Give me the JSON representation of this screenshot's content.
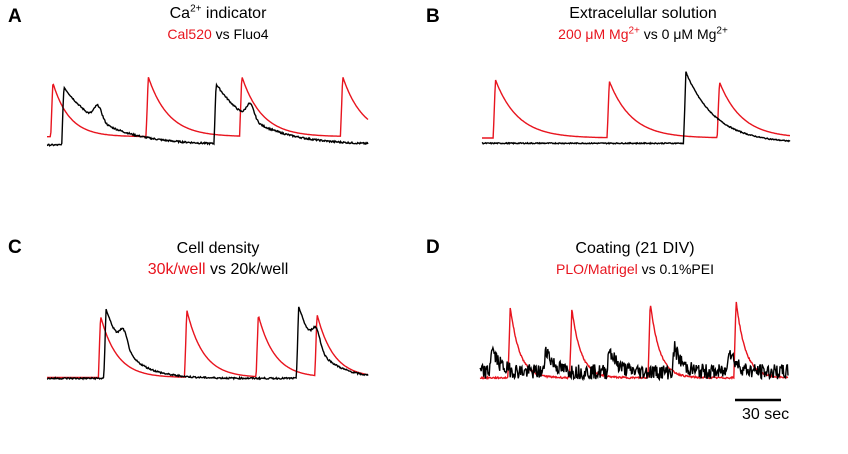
{
  "colors": {
    "red": "#e8141e",
    "black": "#000000"
  },
  "panels": {
    "A": {
      "letter": "A",
      "title_pre": "Ca",
      "title_sup": "2+",
      "title_post": " indicator",
      "sub_red": "Cal520",
      "sub_black": " vs Fluo4"
    },
    "B": {
      "letter": "B",
      "title": "Extracelullar solution",
      "sub_red": "200 μM Mg",
      "sub_red_sup": "2+",
      "sub_black": " vs 0 μM Mg",
      "sub_black_sup": "2+"
    },
    "C": {
      "letter": "C",
      "title": "Cell density",
      "sub_red": "30k/well",
      "sub_black": " vs 20k/well"
    },
    "D": {
      "letter": "D",
      "title": "Coating (21 DIV)",
      "sub_red": "PLO/Matrigel",
      "sub_black": " vs 0.1%PEI"
    }
  },
  "scale_bar": {
    "label": "30 sec"
  },
  "chart_data": [
    {
      "type": "line",
      "panel": "A",
      "x_unit": "sec",
      "series": [
        {
          "color": "red",
          "baseline": 0.1,
          "noise": 0.0,
          "peaks": [
            {
              "t": 2,
              "amp": 0.65,
              "decay": 9
            },
            {
              "t": 54,
              "amp": 0.72,
              "decay": 11
            },
            {
              "t": 105,
              "amp": 0.72,
              "decay": 11
            },
            {
              "t": 160,
              "amp": 0.72,
              "decay": 11
            }
          ]
        },
        {
          "color": "black",
          "baseline": 0.0,
          "noise": 0.01,
          "peaks": [
            {
              "t": 8,
              "amp": 0.7,
              "decay": 22,
              "shoulder": 0.5
            },
            {
              "t": 91,
              "amp": 0.72,
              "decay": 22,
              "shoulder": 0.5
            }
          ]
        }
      ]
    },
    {
      "type": "line",
      "panel": "B",
      "x_unit": "sec",
      "series": [
        {
          "color": "red",
          "baseline": 0.08,
          "noise": 0.0,
          "peaks": [
            {
              "t": 6,
              "amp": 0.67,
              "decay": 12
            },
            {
              "t": 67,
              "amp": 0.65,
              "decay": 12
            },
            {
              "t": 126,
              "amp": 0.64,
              "decay": 12
            }
          ]
        },
        {
          "color": "black",
          "baseline": 0.02,
          "noise": 0.006,
          "peaks": [
            {
              "t": 108,
              "amp": 0.82,
              "decay": 16
            }
          ]
        }
      ]
    },
    {
      "type": "line",
      "panel": "C",
      "x_unit": "sec",
      "series": [
        {
          "color": "red",
          "baseline": 0.03,
          "noise": 0.0,
          "peaks": [
            {
              "t": 28,
              "amp": 0.75,
              "decay": 9
            },
            {
              "t": 75,
              "amp": 0.82,
              "decay": 9
            },
            {
              "t": 114,
              "amp": 0.75,
              "decay": 9
            },
            {
              "t": 146,
              "amp": 0.75,
              "decay": 9
            }
          ]
        },
        {
          "color": "black",
          "baseline": 0.02,
          "noise": 0.01,
          "peaks": [
            {
              "t": 31,
              "amp": 0.85,
              "decay": 12,
              "shoulder": 0.5
            },
            {
              "t": 136,
              "amp": 0.88,
              "decay": 12,
              "shoulder": 0.5
            }
          ]
        }
      ]
    },
    {
      "type": "line",
      "panel": "D",
      "x_unit": "sec",
      "series": [
        {
          "color": "red",
          "baseline": 0.05,
          "noise": 0.01,
          "peaks": [
            {
              "t": 15,
              "amp": 0.85,
              "decay": 5
            },
            {
              "t": 48,
              "amp": 0.82,
              "decay": 5
            },
            {
              "t": 90,
              "amp": 0.9,
              "decay": 5
            },
            {
              "t": 136,
              "amp": 0.92,
              "decay": 5
            }
          ]
        },
        {
          "color": "black",
          "baseline": 0.12,
          "noise": 0.09,
          "peaks": [
            {
              "t": 5,
              "amp": 0.3,
              "decay": 4
            },
            {
              "t": 34,
              "amp": 0.3,
              "decay": 4
            },
            {
              "t": 68,
              "amp": 0.3,
              "decay": 4
            },
            {
              "t": 103,
              "amp": 0.3,
              "decay": 4
            },
            {
              "t": 132,
              "amp": 0.3,
              "decay": 4
            }
          ]
        }
      ]
    }
  ]
}
